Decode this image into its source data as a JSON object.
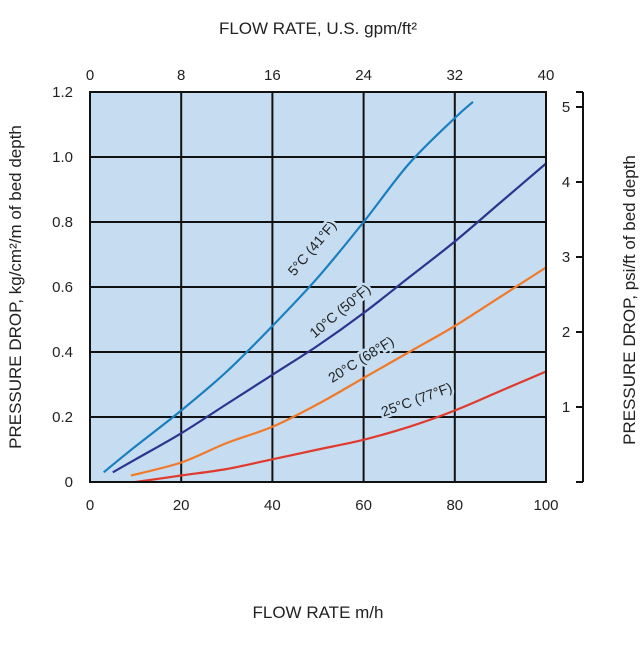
{
  "chart_data": {
    "type": "line",
    "top_axis_label": "FLOW RATE, U.S. gpm/ft²",
    "xlabel": "FLOW RATE m/h",
    "ylabel": "PRESSURE DROP, kg/cm²/m of bed depth",
    "right_axis_label": "PRESSURE DROP, psi/ft of bed depth",
    "xlim": [
      0,
      100
    ],
    "ylim": [
      0,
      1.2
    ],
    "top_xlim": [
      0,
      40
    ],
    "right_ylim": [
      0,
      5.2
    ],
    "x_ticks": [
      "0",
      "20",
      "40",
      "60",
      "80",
      "100"
    ],
    "y_ticks": [
      "0",
      "0.2",
      "0.4",
      "0.6",
      "0.8",
      "1.0",
      "1.2"
    ],
    "top_ticks": [
      "0",
      "8",
      "16",
      "24",
      "32",
      "40"
    ],
    "right_ticks": [
      "1",
      "2",
      "3",
      "4",
      "5"
    ],
    "grid": true,
    "plot_background": "#c6dcf0",
    "series": [
      {
        "name": "5°C (41°F)",
        "color": "#1a7fc1",
        "x": [
          3,
          10,
          20,
          30,
          40,
          50,
          60,
          70,
          80,
          84
        ],
        "y": [
          0.03,
          0.11,
          0.22,
          0.34,
          0.48,
          0.63,
          0.8,
          0.98,
          1.12,
          1.17
        ]
      },
      {
        "name": "10°C (50°F)",
        "color": "#2b3590",
        "x": [
          5,
          10,
          20,
          30,
          40,
          50,
          60,
          70,
          80,
          90,
          100
        ],
        "y": [
          0.03,
          0.07,
          0.15,
          0.24,
          0.33,
          0.42,
          0.52,
          0.63,
          0.74,
          0.86,
          0.98
        ]
      },
      {
        "name": "20°C (68°F)",
        "color": "#f07a2a",
        "x": [
          9,
          20,
          30,
          40,
          50,
          60,
          70,
          80,
          90,
          100
        ],
        "y": [
          0.02,
          0.06,
          0.12,
          0.17,
          0.24,
          0.32,
          0.4,
          0.48,
          0.57,
          0.66
        ]
      },
      {
        "name": "25°C (77°F)",
        "color": "#e03a2e",
        "x": [
          10,
          20,
          30,
          40,
          50,
          60,
          70,
          80,
          90,
          100
        ],
        "y": [
          0.0,
          0.02,
          0.04,
          0.07,
          0.1,
          0.13,
          0.17,
          0.22,
          0.28,
          0.34
        ]
      }
    ]
  }
}
